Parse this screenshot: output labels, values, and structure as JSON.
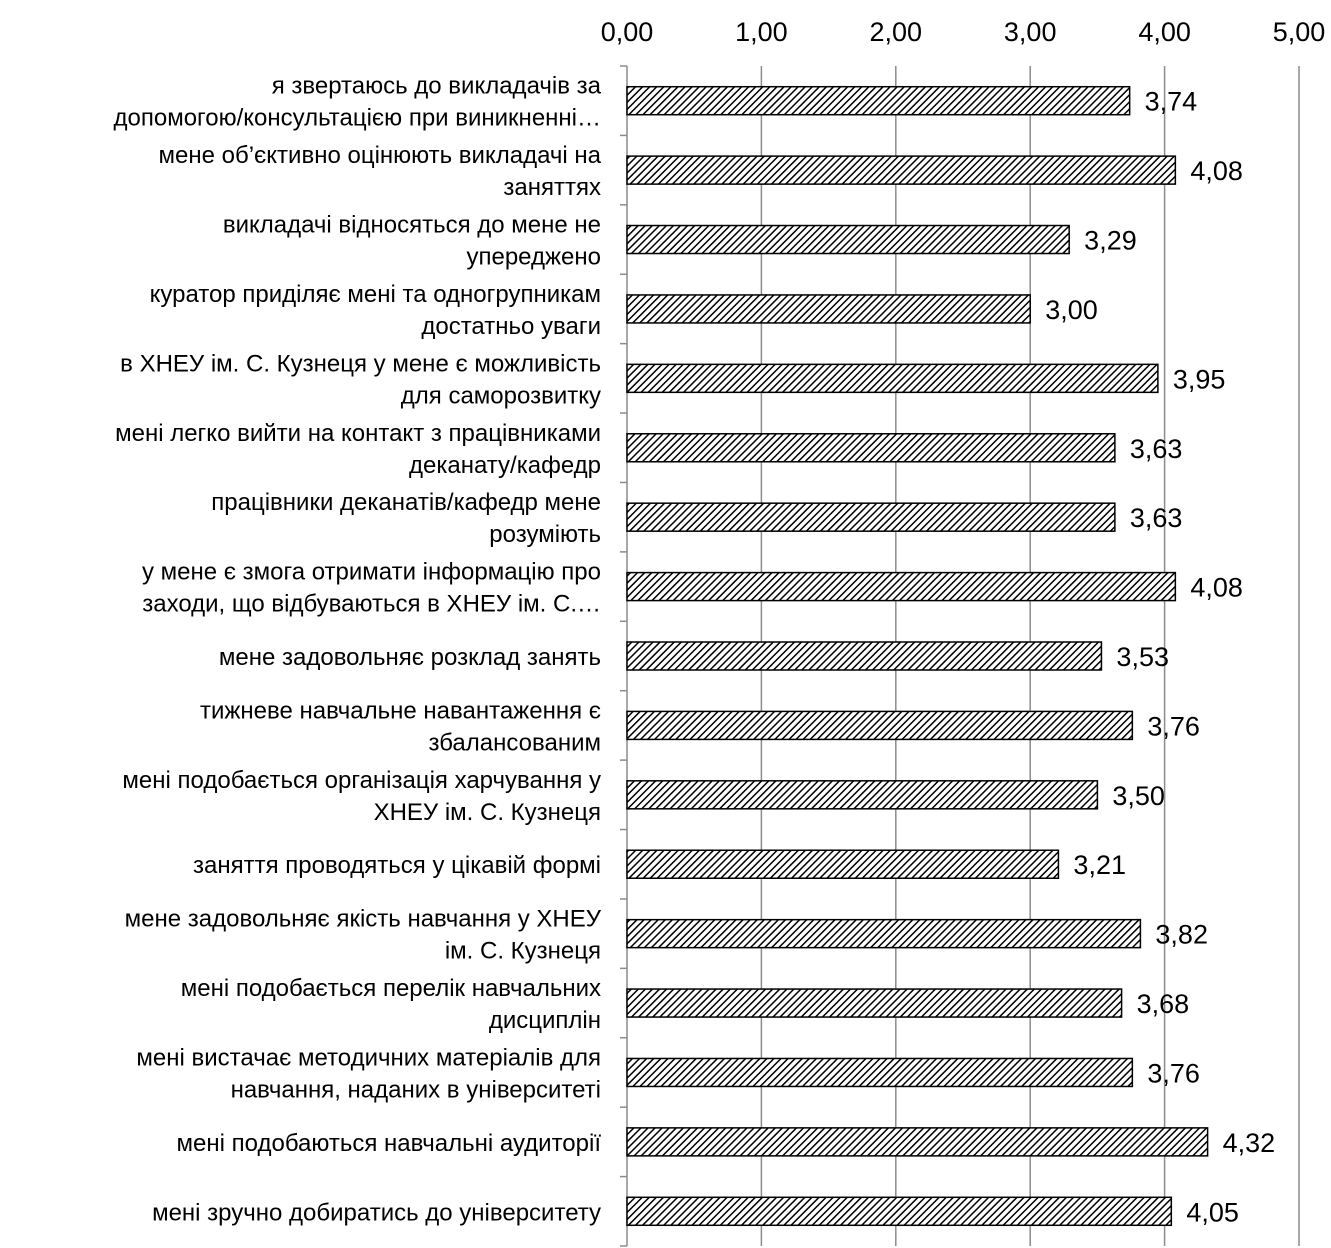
{
  "chart_data": {
    "type": "bar",
    "orientation": "horizontal",
    "x_axis_position": "top",
    "xlim": [
      0,
      5
    ],
    "x_ticks": [
      "0,00",
      "1,00",
      "2,00",
      "3,00",
      "4,00",
      "5,00"
    ],
    "grid": true,
    "bar_fill": "diagonal hatch",
    "bar_color": "#000000",
    "grid_color": "#8c8c8c",
    "categories": [
      [
        "я звертаюсь до викладачів за",
        "допомогою/консультацією при виникненні…"
      ],
      [
        "мене об’єктивно оцінюють викладачі на",
        "заняттях"
      ],
      [
        "викладачі відносяться до мене не",
        "упереджено"
      ],
      [
        "куратор приділяє мені та одногрупникам",
        "достатньо уваги"
      ],
      [
        "в ХНЕУ ім. С. Кузнеця у мене є можливість",
        "для саморозвитку"
      ],
      [
        "мені легко вийти на контакт з працівниками",
        "деканату/кафедр"
      ],
      [
        "працівники деканатів/кафедр мене",
        "розуміють"
      ],
      [
        "у мене є змога отримати інформацію про",
        "заходи, що відбуваються в ХНЕУ ім. С.…"
      ],
      [
        "мене задовольняє розклад занять"
      ],
      [
        "тижневе навчальне навантаження є",
        "збалансованим"
      ],
      [
        "мені подобається організація харчування у",
        "ХНЕУ ім. С. Кузнеця"
      ],
      [
        "заняття проводяться у цікавій формі"
      ],
      [
        "мене задовольняє якість навчання у ХНЕУ",
        "ім. С. Кузнеця"
      ],
      [
        "мені подобається перелік навчальних",
        "дисциплін"
      ],
      [
        "мені вистачає методичних матеріалів для",
        "навчання, наданих в університеті"
      ],
      [
        "мені подобаються навчальні аудиторії"
      ],
      [
        "мені зручно добиратись до університету"
      ]
    ],
    "values": [
      3.74,
      4.08,
      3.29,
      3.0,
      3.95,
      3.63,
      3.63,
      4.08,
      3.53,
      3.76,
      3.5,
      3.21,
      3.82,
      3.68,
      3.76,
      4.32,
      4.05
    ],
    "value_labels": [
      "3,74",
      "4,08",
      "3,29",
      "3,00",
      "3,95",
      "3,63",
      "3,63",
      "4,08",
      "3,53",
      "3,76",
      "3,50",
      "3,21",
      "3,82",
      "3,68",
      "3,76",
      "4,32",
      "4,05"
    ]
  }
}
